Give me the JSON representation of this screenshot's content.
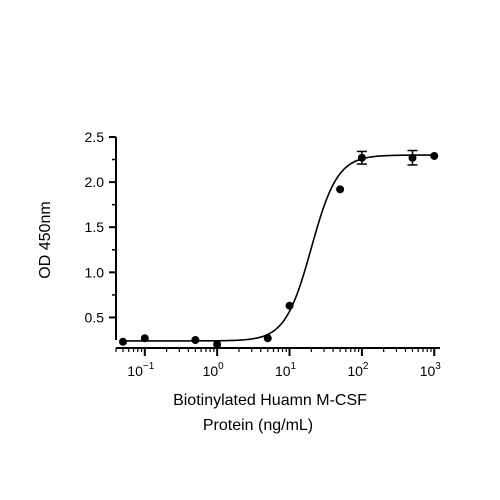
{
  "chart_data": {
    "type": "scatter",
    "title": "",
    "xlabel_lines": [
      "Biotinylated Huamn M-CSF",
      "Protein (ng/mL)"
    ],
    "ylabel": "OD 450nm",
    "x_scale": "log",
    "xlim": [
      0.04,
      1200
    ],
    "ylim": [
      0.25,
      2.5
    ],
    "x_ticks": [
      {
        "value": 0.1,
        "base": "10",
        "exp": "−1"
      },
      {
        "value": 1,
        "base": "10",
        "exp": "0"
      },
      {
        "value": 10,
        "base": "10",
        "exp": "1"
      },
      {
        "value": 100,
        "base": "10",
        "exp": "2"
      },
      {
        "value": 1000,
        "base": "10",
        "exp": "3"
      }
    ],
    "y_ticks": [
      {
        "value": 0.5,
        "label": "0.5"
      },
      {
        "value": 1.0,
        "label": "1.0"
      },
      {
        "value": 1.5,
        "label": "1.5"
      },
      {
        "value": 2.0,
        "label": "2.0"
      },
      {
        "value": 2.5,
        "label": "2.5"
      }
    ],
    "points": [
      {
        "x": 0.05,
        "y": 0.23,
        "err": 0
      },
      {
        "x": 0.1,
        "y": 0.27,
        "err": 0
      },
      {
        "x": 0.5,
        "y": 0.25,
        "err": 0
      },
      {
        "x": 1,
        "y": 0.2,
        "err": 0
      },
      {
        "x": 5,
        "y": 0.27,
        "err": 0
      },
      {
        "x": 10,
        "y": 0.63,
        "err": 0
      },
      {
        "x": 50,
        "y": 1.92,
        "err": 0
      },
      {
        "x": 100,
        "y": 2.27,
        "err": 0.07
      },
      {
        "x": 500,
        "y": 2.27,
        "err": 0.08
      },
      {
        "x": 1000,
        "y": 2.29,
        "err": 0
      }
    ],
    "fit": {
      "model": "4PL",
      "bottom": 0.24,
      "top": 2.3,
      "ec50": 20,
      "hill": 2.4
    },
    "grid": false,
    "legend": "none"
  }
}
